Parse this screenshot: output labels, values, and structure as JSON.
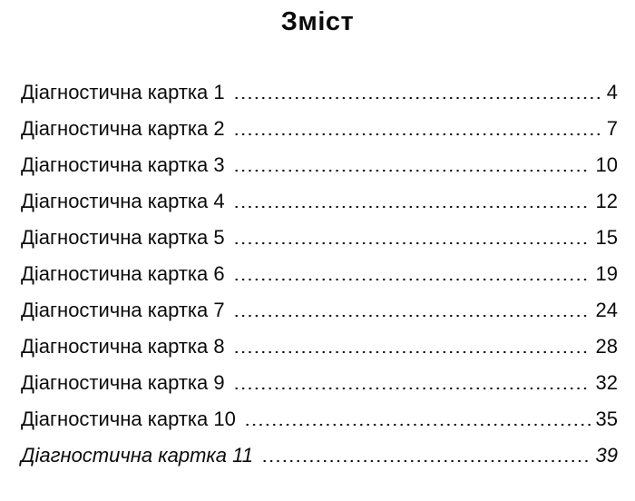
{
  "title": "Зміст",
  "colors": {
    "text": "#0b0b0b",
    "background": "#ffffff"
  },
  "entries": [
    {
      "label": "Діагностична картка 1",
      "page": "4"
    },
    {
      "label": "Діагностична картка 2",
      "page": "7"
    },
    {
      "label": "Діагностична картка 3",
      "page": "10"
    },
    {
      "label": "Діагностична картка 4",
      "page": "12"
    },
    {
      "label": "Діагностична картка 5",
      "page": "15"
    },
    {
      "label": "Діагностична картка 6",
      "page": "19"
    },
    {
      "label": "Діагностична картка 7",
      "page": "24"
    },
    {
      "label": "Діагностична картка 8",
      "page": "28"
    },
    {
      "label": "Діагностична картка 9",
      "page": "32"
    },
    {
      "label": "Діагностична картка 10",
      "page": "35"
    },
    {
      "label": "Діагностична картка 11",
      "page": "39"
    }
  ]
}
